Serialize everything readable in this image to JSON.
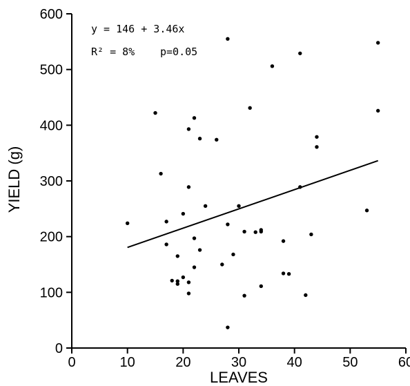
{
  "chart_data": {
    "type": "scatter",
    "xlabel": "LEAVES",
    "ylabel": "YIELD (g)",
    "xlim": [
      0,
      60
    ],
    "ylim": [
      0,
      600
    ],
    "xticks": [
      0,
      10,
      20,
      30,
      40,
      50,
      60
    ],
    "yticks": [
      0,
      100,
      200,
      300,
      400,
      500,
      600
    ],
    "grid": false,
    "annotations": [
      "y = 146 + 3.46x",
      "R² = 8%",
      "p=0.05"
    ],
    "trendline": {
      "intercept": 146,
      "slope": 3.46,
      "x_range": [
        10,
        55
      ]
    },
    "points": [
      [
        10,
        224
      ],
      [
        15,
        422
      ],
      [
        16,
        313
      ],
      [
        17,
        227
      ],
      [
        17,
        186
      ],
      [
        18,
        121
      ],
      [
        19,
        120
      ],
      [
        19,
        115
      ],
      [
        19,
        165
      ],
      [
        20,
        241
      ],
      [
        20,
        127
      ],
      [
        21,
        393
      ],
      [
        21,
        289
      ],
      [
        21,
        118
      ],
      [
        21,
        98
      ],
      [
        22,
        413
      ],
      [
        22,
        197
      ],
      [
        22,
        145
      ],
      [
        23,
        376
      ],
      [
        23,
        176
      ],
      [
        24,
        255
      ],
      [
        26,
        374
      ],
      [
        27,
        150
      ],
      [
        28,
        555
      ],
      [
        28,
        222
      ],
      [
        28,
        37
      ],
      [
        29,
        168
      ],
      [
        30,
        255
      ],
      [
        31,
        209
      ],
      [
        31,
        94
      ],
      [
        32,
        431
      ],
      [
        33,
        208
      ],
      [
        34,
        212
      ],
      [
        34,
        209
      ],
      [
        34,
        111
      ],
      [
        36,
        506
      ],
      [
        38,
        192
      ],
      [
        38,
        134
      ],
      [
        39,
        133
      ],
      [
        41,
        529
      ],
      [
        41,
        289
      ],
      [
        42,
        95
      ],
      [
        43,
        204
      ],
      [
        44,
        379
      ],
      [
        44,
        361
      ],
      [
        53,
        247
      ],
      [
        55,
        548
      ],
      [
        55,
        426
      ]
    ]
  }
}
